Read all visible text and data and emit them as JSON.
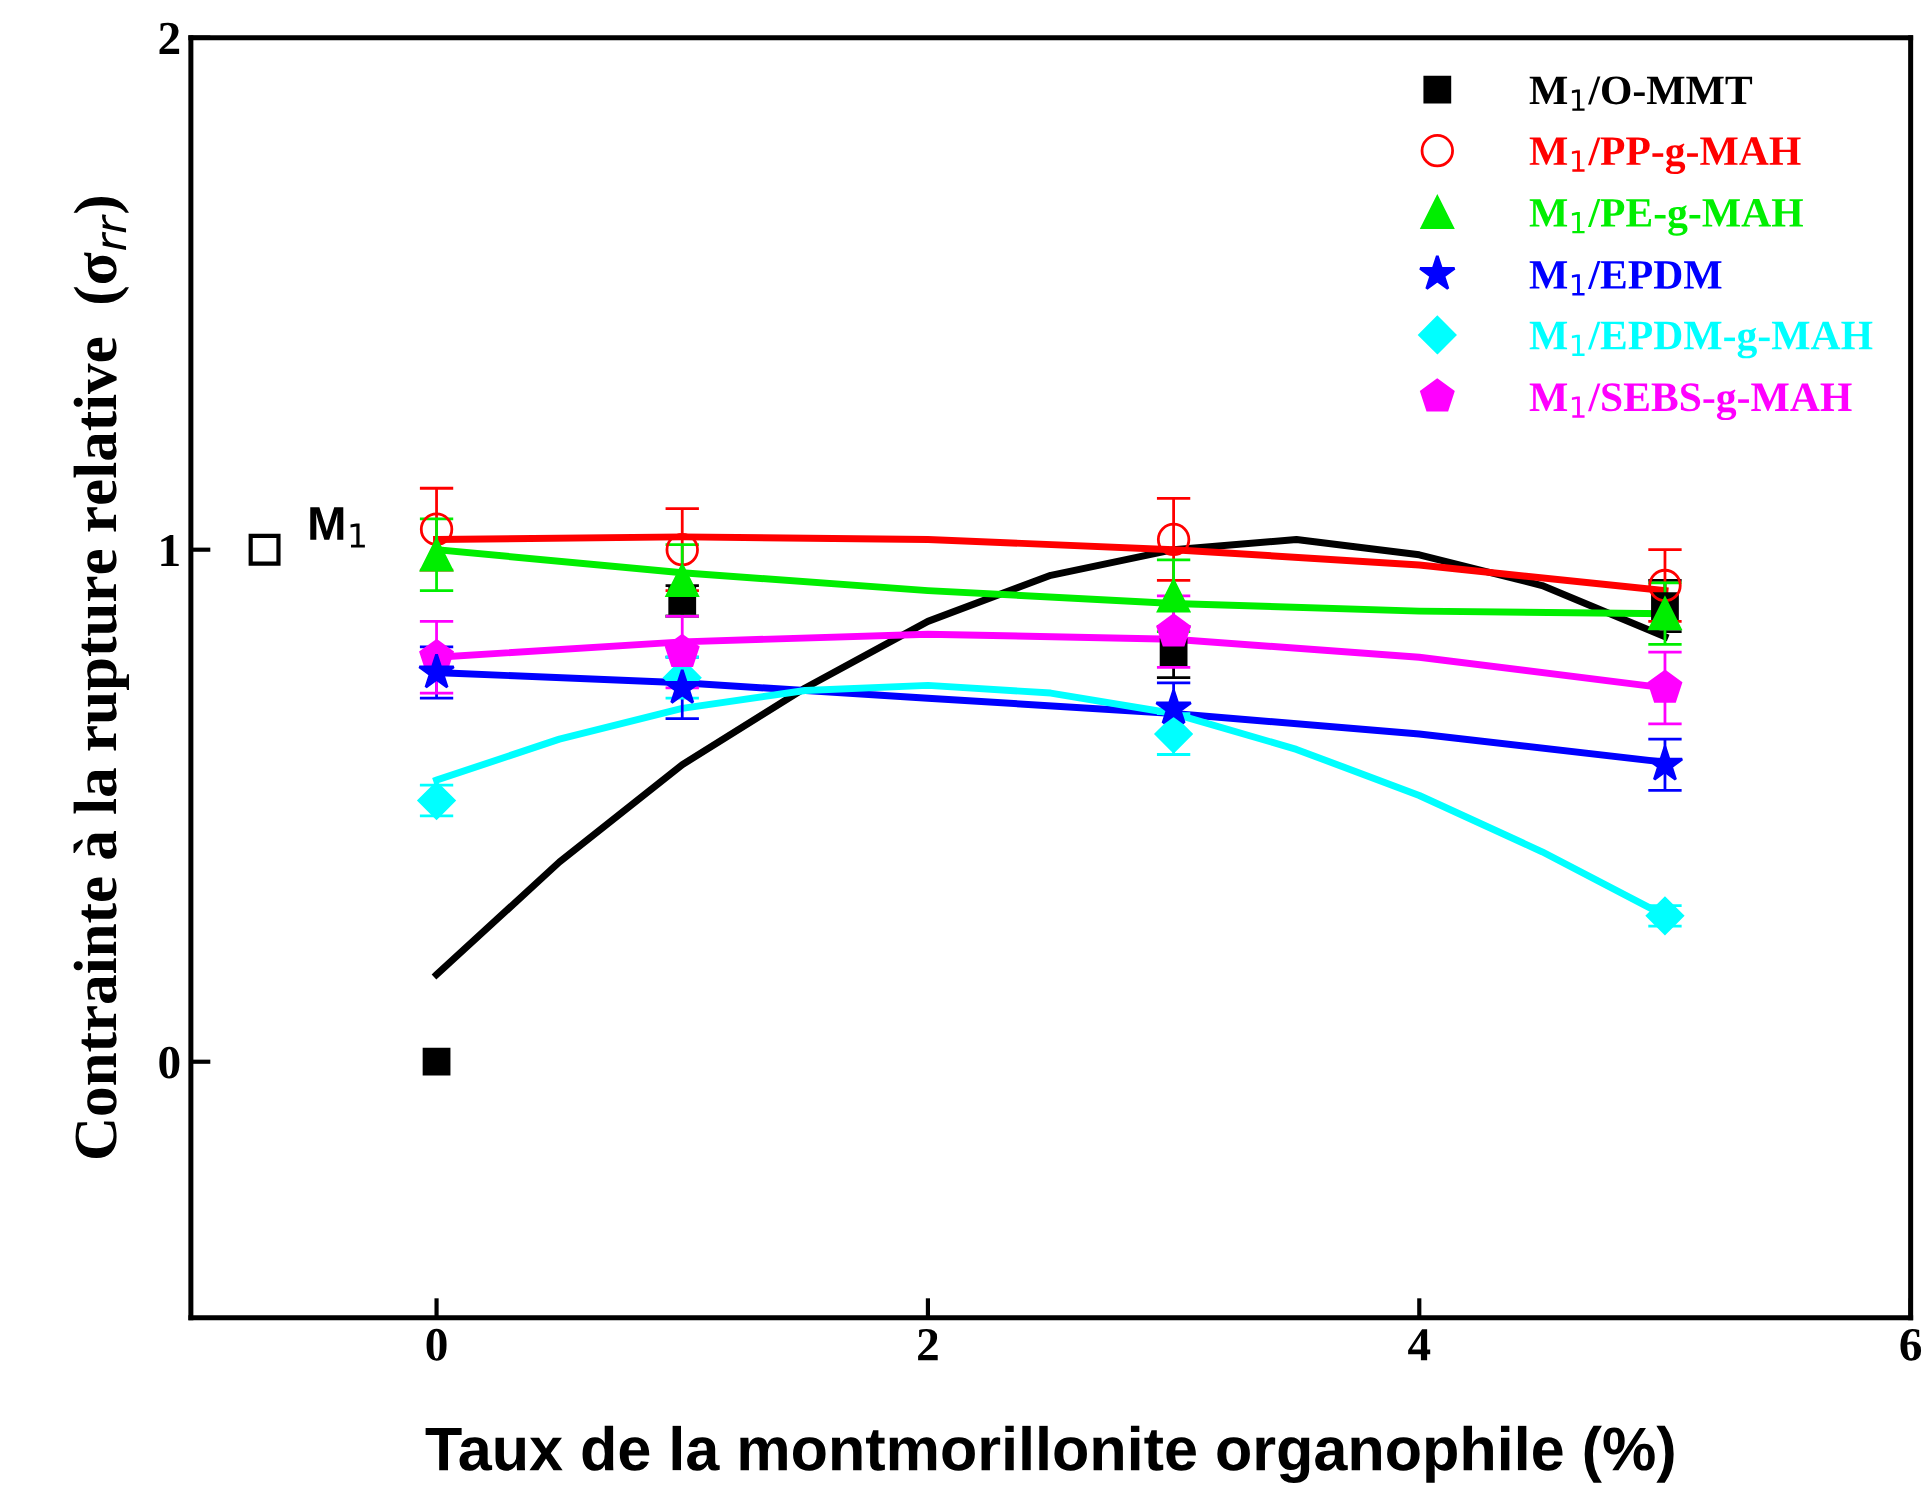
{
  "chart_data": {
    "type": "scatter",
    "xlabel": "Taux de la montmorillonite organophile (%)",
    "ylabel": "Contrainte à la rupture relative  (σ$_{rr}$)",
    "xlim": [
      -1,
      6
    ],
    "xticks": [
      0,
      2,
      4,
      6
    ],
    "ylim": [
      -0.5,
      2
    ],
    "yticks": [
      0,
      1,
      2
    ],
    "grid": false,
    "legend": "top right",
    "x": [
      0,
      1,
      3,
      5
    ],
    "series": [
      {
        "name": "M$_{1}$/O-MMT",
        "color": "#000000",
        "marker": "square",
        "values": [
          0,
          0.9,
          0.8,
          0.89
        ],
        "errors": [
          null,
          0.03,
          0.05,
          0.05
        ]
      },
      {
        "name": "M$_{1}$/PP-g-MAH",
        "color": "#ff0000",
        "marker": "circle",
        "values": [
          1.04,
          1.0,
          1.02,
          0.93
        ],
        "errors": [
          0.08,
          0.08,
          0.08,
          0.07
        ]
      },
      {
        "name": "M$_{1}$/PE-g-MAH",
        "color": "#00ee00",
        "marker": "triangle",
        "values": [
          0.99,
          0.94,
          0.91,
          0.875
        ],
        "errors": [
          0.07,
          0.07,
          0.07,
          0.06
        ]
      },
      {
        "name": "M$_{1}$/EPDM",
        "color": "#0000ff",
        "marker": "star",
        "values": [
          0.76,
          0.73,
          0.69,
          0.58
        ],
        "errors": [
          0.05,
          0.06,
          0.05,
          0.05
        ]
      },
      {
        "name": "M$_{1}$/EPDM-g-MAH",
        "color": "#00ffff",
        "marker": "diamond",
        "values": [
          0.51,
          0.75,
          0.64,
          0.285
        ],
        "errors": [
          0.03,
          0.04,
          0.04,
          0.02
        ]
      },
      {
        "name": "M$_{1}$/SEBS-g-MAH",
        "color": "#ff00ff",
        "values": [
          0.79,
          0.8,
          0.84,
          0.73
        ],
        "errors": [
          0.07,
          0.07,
          0.07,
          0.07
        ]
      },
      {
        "color": "#000000",
        "marker": "square",
        "x": [
          -0.7
        ],
        "values": [
          1.0
        ]
      },
      {
        "type": "line",
        "color": "#000000",
        "x": [
          0,
          0.5,
          1,
          1.5,
          2,
          2.5,
          3,
          3.5,
          4,
          4.5,
          5
        ],
        "values": [
          0.17,
          0.39,
          0.58,
          0.73,
          0.86,
          0.95,
          1.0,
          1.02,
          0.99,
          0.93,
          0.83
        ]
      },
      {
        "type": "line",
        "color": "#ff0000",
        "x": [
          0,
          1,
          2,
          3,
          4,
          5
        ],
        "values": [
          1.02,
          1.025,
          1.02,
          1.0,
          0.97,
          0.92
        ]
      },
      {
        "type": "line",
        "color": "#00ee00",
        "x": [
          0,
          1,
          2,
          3,
          4,
          5
        ],
        "values": [
          1.0,
          0.955,
          0.92,
          0.895,
          0.88,
          0.875
        ]
      },
      {
        "type": "line",
        "color": "#0000ff",
        "x": [
          0,
          1,
          2,
          3,
          4,
          5
        ],
        "values": [
          0.76,
          0.74,
          0.71,
          0.68,
          0.64,
          0.585
        ]
      },
      {
        "type": "line",
        "color": "#00ffff",
        "x": [
          0,
          0.5,
          1,
          1.5,
          2,
          2.5,
          3,
          3.5,
          4,
          4.5,
          5
        ],
        "values": [
          0.55,
          0.63,
          0.69,
          0.725,
          0.735,
          0.72,
          0.68,
          0.61,
          0.52,
          0.41,
          0.285
        ]
      },
      {
        "type": "line",
        "color": "#ff00ff",
        "x": [
          0,
          1,
          2,
          3,
          4,
          5
        ],
        "values": [
          0.79,
          0.82,
          0.835,
          0.825,
          0.79,
          0.73
        ]
      }
    ],
    "annotations": [
      {
        "text": "M$_{1}$",
        "x": -0.7,
        "y": 1.0
      }
    ]
  }
}
